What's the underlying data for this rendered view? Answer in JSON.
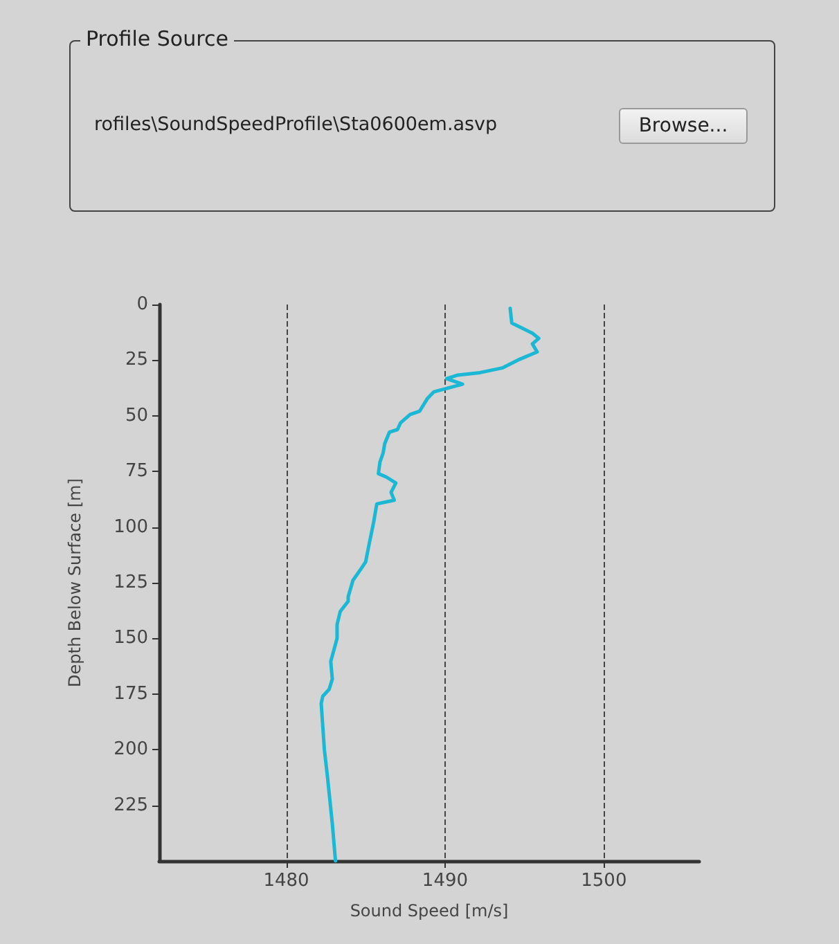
{
  "chart_data": {
    "type": "line",
    "xlabel": "Sound Speed [m/s]",
    "ylabel": "Depth Below Surface [m]",
    "annotations": [
      "Profile Source",
      "rofiles\\SoundSpeedProfile\\Sta0600em.asvp",
      "Browse..."
    ],
    "series": [
      {
        "color": "#1ab8d4",
        "x": [
          1494.1,
          1494.2,
          1494.8,
          1495.5,
          1495.9,
          1495.5,
          1495.8,
          1494.7,
          1493.6,
          1492.2,
          1490.8,
          1490.1,
          1491.1,
          1489.3,
          1488.9,
          1488.4,
          1487.8,
          1487.2,
          1487.0,
          1486.5,
          1486.2,
          1486.1,
          1485.9,
          1485.8,
          1486.3,
          1486.9,
          1486.6,
          1486.8,
          1485.7,
          1485.5,
          1485.2,
          1485.0,
          1484.7,
          1484.2,
          1483.9,
          1483.9,
          1483.4,
          1483.2,
          1483.2,
          1482.8,
          1482.9,
          1482.7,
          1482.3,
          1482.2,
          1482.4,
          1482.6,
          1482.9,
          1483.1
        ],
        "values": [
          1.7,
          8.3,
          10.4,
          12.9,
          15.2,
          17.7,
          21.3,
          24.6,
          28.5,
          30.6,
          31.7,
          33.3,
          35.8,
          39.2,
          42.1,
          47.9,
          49.4,
          53.1,
          56.2,
          57.3,
          62.5,
          66.7,
          70.8,
          76.0,
          77.5,
          80.2,
          84.4,
          87.9,
          89.6,
          97.9,
          108.3,
          115.6,
          118.8,
          123.9,
          131.3,
          133.3,
          137.9,
          143.8,
          150.0,
          160.4,
          168.3,
          172.9,
          176.0,
          179.2,
          200.0,
          212.5,
          233.3,
          250.0
        ]
      }
    ],
    "xlim": [
      1472,
      1506
    ],
    "xticks": [
      1480,
      1490,
      1500
    ],
    "ylim": [
      250,
      0
    ],
    "yticks": [
      0,
      25,
      50,
      75,
      100,
      125,
      150,
      175,
      200,
      225
    ],
    "grid": "x",
    "marker": "none",
    "line_style": "solid"
  }
}
